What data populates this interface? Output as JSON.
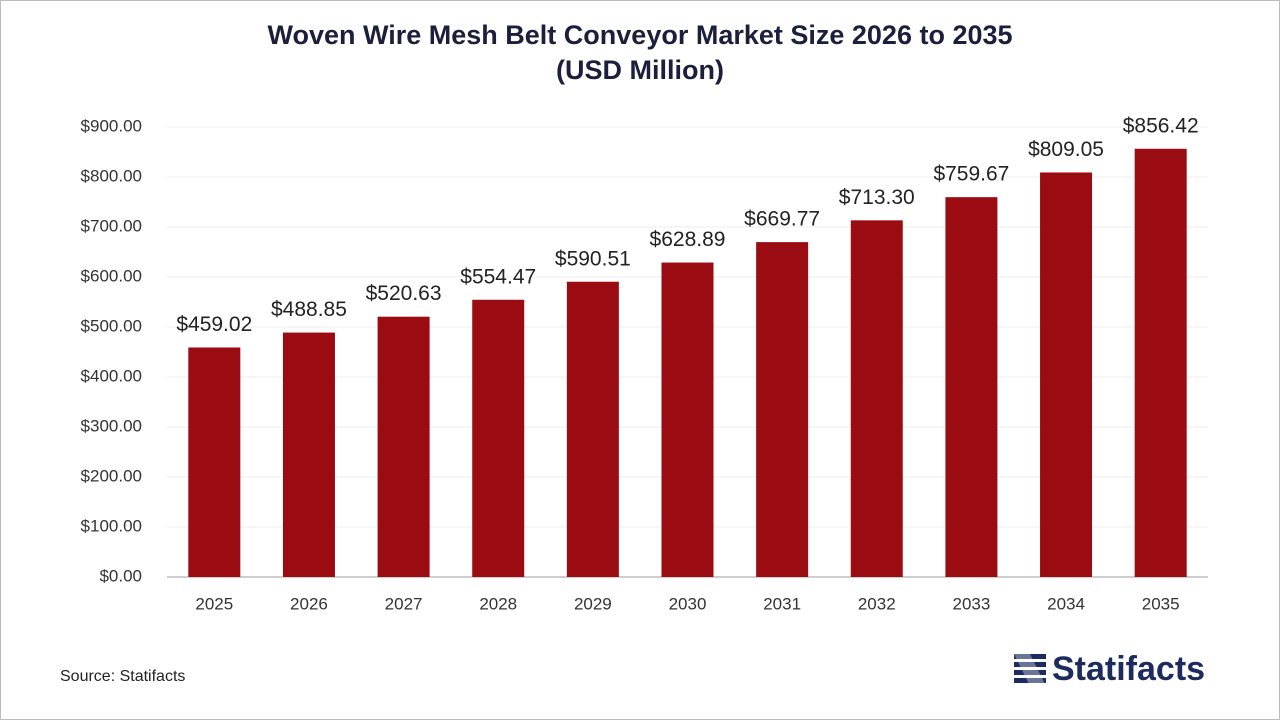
{
  "chart_data": {
    "type": "bar",
    "title": "Woven Wire Mesh Belt Conveyor Market Size 2026 to 2035",
    "subtitle": "(USD Million)",
    "categories": [
      "2025",
      "2026",
      "2027",
      "2028",
      "2029",
      "2030",
      "2031",
      "2032",
      "2033",
      "2034",
      "2035"
    ],
    "values": [
      459.02,
      488.85,
      520.63,
      554.47,
      590.51,
      628.89,
      669.77,
      713.3,
      759.67,
      809.05,
      856.42
    ],
    "value_labels": [
      "$459.02",
      "$488.85",
      "$520.63",
      "$554.47",
      "$590.51",
      "$628.89",
      "$669.77",
      "$713.30",
      "$759.67",
      "$809.05",
      "$856.42"
    ],
    "color": "#9b0b12",
    "ylim": [
      0,
      900
    ],
    "yticks": [
      {
        "value": 0,
        "label": "$0.00"
      },
      {
        "value": 100,
        "label": "$100.00"
      },
      {
        "value": 200,
        "label": "$200.00"
      },
      {
        "value": 300,
        "label": "$300.00"
      },
      {
        "value": 400,
        "label": "$400.00"
      },
      {
        "value": 500,
        "label": "$500.00"
      },
      {
        "value": 600,
        "label": "$600.00"
      },
      {
        "value": 700,
        "label": "$700.00"
      },
      {
        "value": 800,
        "label": "$800.00"
      },
      {
        "value": 900,
        "label": "$900.00"
      }
    ],
    "grid": true,
    "source": "Source: Statifacts",
    "logo": "Statifacts"
  }
}
